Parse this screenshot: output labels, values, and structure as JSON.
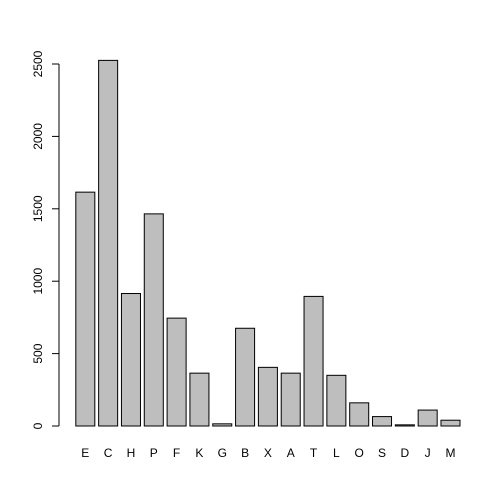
{
  "chart_data": {
    "type": "bar",
    "categories": [
      "E",
      "C",
      "H",
      "P",
      "F",
      "K",
      "G",
      "B",
      "X",
      "A",
      "T",
      "L",
      "O",
      "S",
      "D",
      "J",
      "M"
    ],
    "values": [
      1615,
      2525,
      915,
      1465,
      745,
      365,
      15,
      675,
      405,
      365,
      895,
      350,
      160,
      65,
      8,
      110,
      40
    ],
    "ylim": [
      0,
      2500
    ],
    "yticks": [
      0,
      500,
      1000,
      1500,
      2000,
      2500
    ],
    "title": "",
    "xlabel": "",
    "ylabel": "",
    "bar_color": "#bebebe",
    "bar_stroke": "#000000",
    "grid": false,
    "legend": "none"
  }
}
